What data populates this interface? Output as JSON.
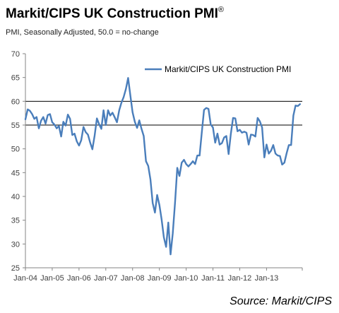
{
  "title": "Markit/CIPS UK Construction PMI",
  "title_mark": "®",
  "subtitle": "PMI, Seasonally Adjusted, 50.0 = no-change",
  "source": "Source: Markit/CIPS",
  "colors": {
    "line": "#4a7ebb",
    "grid": "#000000",
    "axis": "#868686",
    "text": "#404040"
  },
  "chart_data": {
    "type": "line",
    "title": "Markit/CIPS UK Construction PMI",
    "xlabel": "",
    "ylabel": "",
    "ylim": [
      25,
      70
    ],
    "yticks": [
      25,
      30,
      35,
      40,
      45,
      50,
      55,
      60,
      65,
      70
    ],
    "ytick_labels": [
      "25",
      "30",
      "35",
      "40",
      "45",
      "50",
      "55",
      "60",
      "65",
      "70"
    ],
    "grid_values": [
      55,
      60
    ],
    "xtick_labels": [
      "Jan-04",
      "Jan-05",
      "Jan-06",
      "Jan-07",
      "Jan-08",
      "Jan-09",
      "Jan-10",
      "Jan-11",
      "Jan-12",
      "Jan-13"
    ],
    "legend": "top-right",
    "series": [
      {
        "name": "Markit/CIPS UK Construction PMI",
        "start": "Jan-04",
        "frequency": "monthly",
        "values": [
          56.2,
          58.3,
          58.0,
          57.3,
          56.3,
          56.7,
          54.3,
          55.9,
          56.7,
          55.3,
          57.1,
          57.3,
          55.6,
          55.1,
          54.3,
          54.8,
          52.6,
          55.7,
          54.9,
          57.2,
          56.3,
          52.9,
          53.2,
          51.6,
          50.7,
          51.8,
          54.6,
          53.5,
          53.0,
          51.3,
          49.9,
          52.8,
          56.4,
          55.2,
          54.2,
          58.1,
          55.0,
          58.1,
          57.0,
          57.6,
          56.6,
          55.6,
          58.1,
          59.7,
          60.9,
          62.6,
          64.9,
          61.2,
          57.7,
          55.7,
          54.4,
          56.0,
          54.2,
          52.7,
          47.4,
          46.4,
          43.6,
          38.6,
          36.6,
          40.3,
          38.2,
          35.2,
          31.4,
          29.4,
          34.5,
          27.8,
          32.2,
          38.6,
          46.0,
          44.3,
          47.1,
          47.7,
          46.8,
          46.3,
          46.8,
          47.4,
          46.8,
          48.6,
          48.6,
          53.4,
          58.2,
          58.6,
          58.4,
          55.1,
          54.5,
          51.3,
          53.2,
          50.9,
          51.2,
          52.4,
          52.7,
          48.9,
          53.1,
          56.5,
          56.4,
          53.7,
          54.0,
          53.4,
          53.6,
          53.4,
          50.9,
          53.0,
          52.9,
          52.6,
          56.5,
          55.8,
          54.5,
          48.2,
          50.9,
          49.0,
          49.6,
          50.8,
          49.0,
          48.6,
          48.5,
          46.7,
          47.1,
          49.1,
          50.8,
          50.8,
          57.0,
          59.1,
          59.0,
          59.4
        ]
      }
    ]
  }
}
